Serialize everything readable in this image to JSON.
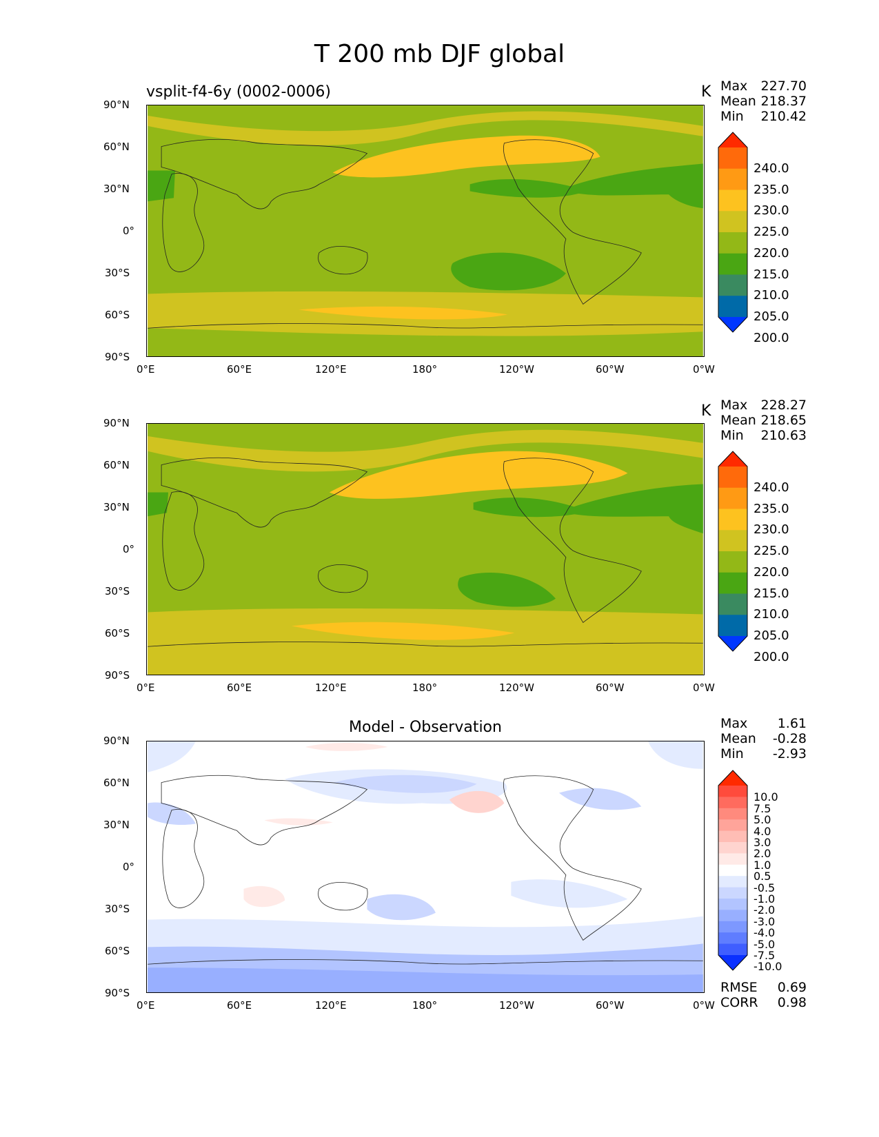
{
  "title": "T 200 mb DJF global",
  "panels": [
    {
      "id": "test",
      "left_title": "vsplit-f4-6y (0002-0006)",
      "center_title": "",
      "units": "K",
      "stats": [
        {
          "label": "Max",
          "value": "227.70"
        },
        {
          "label": "Mean",
          "value": "218.37"
        },
        {
          "label": "Min",
          "value": "210.42"
        }
      ],
      "colorbar_labels": [
        "240.0",
        "235.0",
        "230.0",
        "225.0",
        "220.0",
        "215.0",
        "210.0",
        "205.0",
        "200.0"
      ],
      "colorbar_colors": [
        "#ff2a00",
        "#ff6a0b",
        "#ff9a14",
        "#fdc21f",
        "#d0c320",
        "#93b817",
        "#4aa613",
        "#3a8a60",
        "#006aa8",
        "#0037ff"
      ],
      "extra_stats": []
    },
    {
      "id": "ref",
      "left_title": "",
      "center_title": "",
      "units": "K",
      "stats": [
        {
          "label": "Max",
          "value": "228.27"
        },
        {
          "label": "Mean",
          "value": "218.65"
        },
        {
          "label": "Min",
          "value": "210.63"
        }
      ],
      "colorbar_labels": [
        "240.0",
        "235.0",
        "230.0",
        "225.0",
        "220.0",
        "215.0",
        "210.0",
        "205.0",
        "200.0"
      ],
      "colorbar_colors": [
        "#ff2a00",
        "#ff6a0b",
        "#ff9a14",
        "#fdc21f",
        "#d0c320",
        "#93b817",
        "#4aa613",
        "#3a8a60",
        "#006aa8",
        "#0037ff"
      ],
      "extra_stats": []
    },
    {
      "id": "diff",
      "left_title": "",
      "center_title": "Model - Observation",
      "units": "",
      "stats": [
        {
          "label": "Max",
          "value": "1.61"
        },
        {
          "label": "Mean",
          "value": "-0.28"
        },
        {
          "label": "Min",
          "value": "-2.93"
        }
      ],
      "colorbar_labels": [
        "10.0",
        "7.5",
        "5.0",
        "4.0",
        "3.0",
        "2.0",
        "1.0",
        "0.5",
        "-0.5",
        "-1.0",
        "-2.0",
        "-3.0",
        "-4.0",
        "-5.0",
        "-7.5",
        "-10.0"
      ],
      "colorbar_colors": [
        "#ff2a00",
        "#ff4b3c",
        "#ff6b5e",
        "#ff8a7d",
        "#ffa49a",
        "#ffbdb5",
        "#ffd4cf",
        "#ffeae7",
        "#ffffff",
        "#e3ebff",
        "#cbd7ff",
        "#b2c4ff",
        "#98afff",
        "#7d98ff",
        "#5f7dff",
        "#3f5eff",
        "#0a30ff"
      ],
      "extra_stats": [
        {
          "label": "RMSE",
          "value": "0.69"
        },
        {
          "label": "CORR",
          "value": "0.98"
        }
      ]
    }
  ],
  "axes": {
    "lat_ticks": [
      "90°N",
      "60°N",
      "30°N",
      "0°",
      "30°S",
      "60°S",
      "90°S"
    ],
    "lon_ticks": [
      "0°E",
      "60°E",
      "120°E",
      "180°",
      "120°W",
      "60°W",
      "0°W"
    ]
  },
  "map_fields": {
    "test_background": "#93b817",
    "ref_background": "#93b817",
    "diff_background": "#ffffff"
  }
}
